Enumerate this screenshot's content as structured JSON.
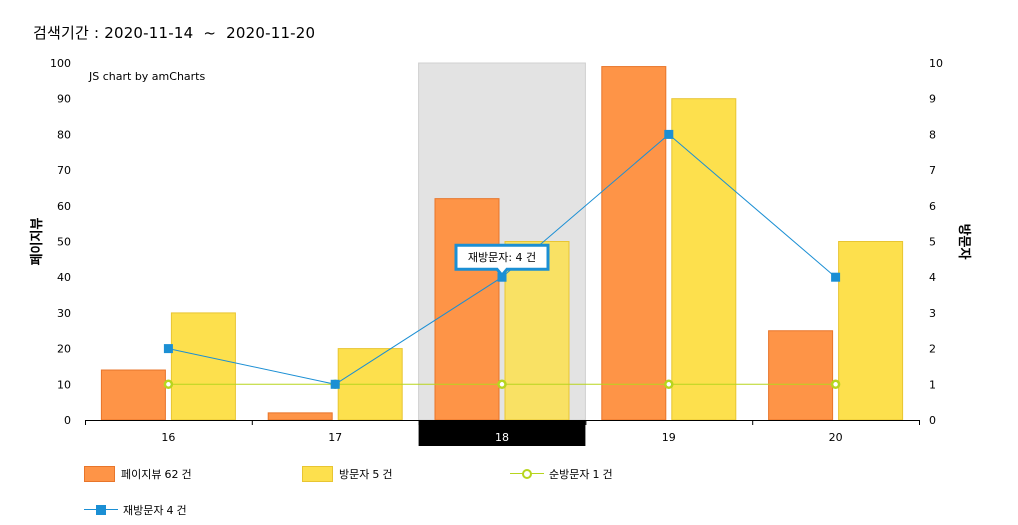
{
  "search": {
    "label": "검색기간 :",
    "start": "2020-11-14",
    "separator": "~",
    "end": "2020-11-20"
  },
  "credit": "JS chart by amCharts",
  "tooltip": {
    "series": "재방문자",
    "value": "4",
    "unit": "건"
  },
  "colors": {
    "pageview": "#fe9447",
    "pageview_border": "#e8752a",
    "visitor": "#fde04d",
    "visitor_border": "#e8c532",
    "unique": "#b7d51e",
    "revisit": "#1b8fd4",
    "highlight": "#e3e3e3"
  },
  "legend": [
    {
      "name": "페이지뷰",
      "value": "62",
      "unit": "건",
      "icon": "bar-swatch"
    },
    {
      "name": "방문자",
      "value": "5",
      "unit": "건",
      "icon": "bar-swatch"
    },
    {
      "name": "순방문자",
      "value": "1",
      "unit": "건",
      "icon": "line-circle-swatch"
    },
    {
      "name": "재방문자",
      "value": "4",
      "unit": "건",
      "icon": "line-square-swatch"
    }
  ],
  "chart_data": {
    "type": "bar",
    "categories": [
      "16",
      "17",
      "18",
      "19",
      "20"
    ],
    "highlighted_category": "18",
    "left_axis": {
      "title": "페이지뷰",
      "ylim": [
        0,
        100
      ],
      "ticks": [
        "0",
        "10",
        "20",
        "30",
        "40",
        "50",
        "60",
        "70",
        "80",
        "90",
        "100"
      ]
    },
    "right_axis": {
      "title": "방문자",
      "ylim": [
        0,
        10
      ],
      "ticks": [
        "0",
        "1",
        "2",
        "3",
        "4",
        "5",
        "6",
        "7",
        "8",
        "9",
        "10"
      ]
    },
    "series": [
      {
        "name": "페이지뷰",
        "type": "bar",
        "axis": "left",
        "values": [
          14,
          2,
          62,
          99,
          25
        ]
      },
      {
        "name": "방문자",
        "type": "bar",
        "axis": "right",
        "values": [
          3,
          2,
          5,
          9,
          5
        ]
      },
      {
        "name": "순방문자",
        "type": "line",
        "axis": "right",
        "values": [
          1,
          1,
          1,
          1,
          1
        ]
      },
      {
        "name": "재방문자",
        "type": "line",
        "axis": "right",
        "values": [
          2,
          1,
          4,
          8,
          4
        ]
      }
    ],
    "grid": false,
    "legend_position": "bottom"
  }
}
